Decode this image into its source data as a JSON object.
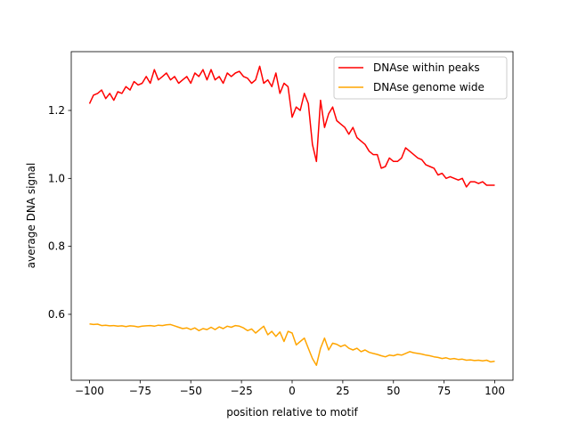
{
  "chart_data": {
    "type": "line",
    "title": "",
    "xlabel": "position relative to motif",
    "ylabel": "average DNA signal",
    "xlim": [
      -109,
      109
    ],
    "ylim": [
      0.406,
      1.373
    ],
    "xticks": [
      -100,
      -75,
      -50,
      -25,
      0,
      25,
      50,
      75,
      100
    ],
    "xtick_labels": [
      "−100",
      "−75",
      "−50",
      "−25",
      "0",
      "25",
      "50",
      "75",
      "100"
    ],
    "yticks": [
      0.6,
      0.8,
      1.0,
      1.2
    ],
    "ytick_labels": [
      "0.6",
      "0.8",
      "1.0",
      "1.2"
    ],
    "grid": false,
    "legend_position": "top-right",
    "x_start": -100,
    "x_step": 2,
    "series": [
      {
        "name": "DNAse within peaks",
        "color": "#ff0000",
        "values": [
          1.22,
          1.245,
          1.25,
          1.26,
          1.235,
          1.25,
          1.23,
          1.255,
          1.25,
          1.27,
          1.26,
          1.285,
          1.275,
          1.28,
          1.3,
          1.28,
          1.32,
          1.29,
          1.3,
          1.31,
          1.29,
          1.3,
          1.28,
          1.29,
          1.3,
          1.28,
          1.31,
          1.3,
          1.32,
          1.29,
          1.32,
          1.29,
          1.3,
          1.28,
          1.31,
          1.3,
          1.31,
          1.315,
          1.3,
          1.295,
          1.28,
          1.29,
          1.33,
          1.28,
          1.29,
          1.27,
          1.31,
          1.25,
          1.28,
          1.27,
          1.18,
          1.21,
          1.2,
          1.25,
          1.22,
          1.1,
          1.05,
          1.23,
          1.15,
          1.19,
          1.21,
          1.17,
          1.16,
          1.15,
          1.13,
          1.15,
          1.12,
          1.11,
          1.1,
          1.08,
          1.07,
          1.07,
          1.03,
          1.035,
          1.06,
          1.05,
          1.05,
          1.06,
          1.09,
          1.08,
          1.07,
          1.06,
          1.055,
          1.04,
          1.035,
          1.03,
          1.01,
          1.015,
          1.0,
          1.005,
          1.0,
          0.995,
          1.0,
          0.975,
          0.99,
          0.99,
          0.985,
          0.99,
          0.98,
          0.98,
          0.98
        ]
      },
      {
        "name": "DNAse genome wide",
        "color": "#ffa500",
        "values": [
          0.572,
          0.57,
          0.571,
          0.567,
          0.568,
          0.566,
          0.567,
          0.565,
          0.566,
          0.564,
          0.566,
          0.565,
          0.563,
          0.565,
          0.566,
          0.567,
          0.565,
          0.568,
          0.567,
          0.569,
          0.57,
          0.566,
          0.562,
          0.558,
          0.56,
          0.555,
          0.56,
          0.552,
          0.558,
          0.555,
          0.562,
          0.555,
          0.563,
          0.558,
          0.565,
          0.562,
          0.567,
          0.565,
          0.56,
          0.552,
          0.557,
          0.545,
          0.555,
          0.565,
          0.54,
          0.55,
          0.535,
          0.548,
          0.52,
          0.55,
          0.545,
          0.51,
          0.52,
          0.53,
          0.5,
          0.47,
          0.45,
          0.5,
          0.53,
          0.495,
          0.515,
          0.512,
          0.505,
          0.51,
          0.5,
          0.495,
          0.5,
          0.49,
          0.495,
          0.488,
          0.485,
          0.482,
          0.478,
          0.475,
          0.48,
          0.478,
          0.482,
          0.48,
          0.485,
          0.49,
          0.487,
          0.485,
          0.483,
          0.48,
          0.478,
          0.475,
          0.473,
          0.47,
          0.472,
          0.468,
          0.47,
          0.467,
          0.468,
          0.465,
          0.466,
          0.464,
          0.465,
          0.463,
          0.465,
          0.46,
          0.462
        ]
      }
    ]
  }
}
